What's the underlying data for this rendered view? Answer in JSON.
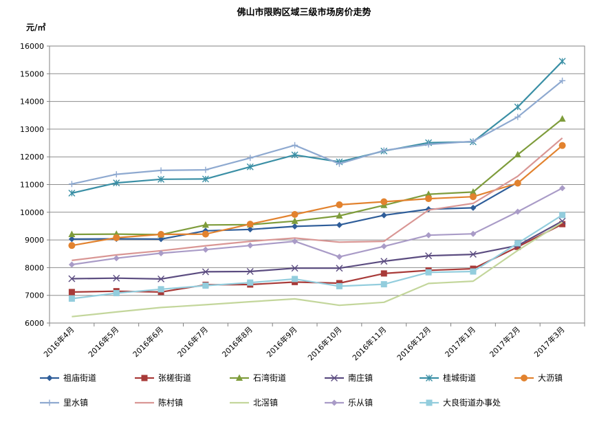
{
  "chart_data": {
    "type": "line",
    "title": "佛山市限购区域三级市场房价走势",
    "ylabel": "元/㎡",
    "ylim": [
      6000,
      16000
    ],
    "yticks": [
      6000,
      7000,
      8000,
      9000,
      10000,
      11000,
      12000,
      13000,
      14000,
      15000,
      16000
    ],
    "grid": true,
    "legend_position": "bottom",
    "categories": [
      "2016年4月",
      "2016年5月",
      "2016年6月",
      "2016年7月",
      "2016年8月",
      "2016年9月",
      "2016年10月",
      "2016年11月",
      "2016年12月",
      "2017年1月",
      "2017年2月",
      "2017年3月"
    ],
    "series": [
      {
        "name": "祖庙街道",
        "color": "#2E5D99",
        "marker": "diamond",
        "values": [
          9030,
          9040,
          9030,
          9330,
          9380,
          9490,
          9540,
          9890,
          10110,
          10160,
          11080,
          null
        ]
      },
      {
        "name": "张槎街道",
        "color": "#A83A38",
        "marker": "square",
        "values": [
          7120,
          7150,
          7120,
          7380,
          7390,
          7480,
          7440,
          7790,
          7900,
          7960,
          8750,
          9570
        ]
      },
      {
        "name": "石湾街道",
        "color": "#7E9C3B",
        "marker": "triangle",
        "values": [
          9200,
          9210,
          9190,
          9540,
          9550,
          9680,
          9870,
          10250,
          10650,
          10730,
          12080,
          13370
        ]
      },
      {
        "name": "南庄镇",
        "color": "#5B4C80",
        "marker": "x",
        "values": [
          7600,
          7620,
          7590,
          7850,
          7860,
          7980,
          7980,
          8230,
          8430,
          8480,
          8800,
          9680
        ]
      },
      {
        "name": "桂城街道",
        "color": "#3A8FA5",
        "marker": "star",
        "values": [
          10690,
          11060,
          11190,
          11200,
          11640,
          12070,
          11820,
          12210,
          12510,
          12540,
          13800,
          15450
        ]
      },
      {
        "name": "大沥镇",
        "color": "#E2822E",
        "marker": "circle",
        "values": [
          8800,
          9080,
          9200,
          9210,
          9570,
          9920,
          10270,
          10380,
          10490,
          10560,
          11050,
          12410
        ]
      },
      {
        "name": "里水镇",
        "color": "#8EA9D0",
        "marker": "plus",
        "values": [
          11020,
          11370,
          11510,
          11530,
          11960,
          12420,
          11750,
          12230,
          12450,
          12560,
          13440,
          14750
        ]
      },
      {
        "name": "陈村镇",
        "color": "#D99694",
        "marker": "none",
        "values": [
          8260,
          8460,
          8610,
          8790,
          8950,
          9070,
          8920,
          8950,
          10080,
          10320,
          11300,
          12680
        ]
      },
      {
        "name": "北滘镇",
        "color": "#C3D69B",
        "marker": "none",
        "values": [
          6230,
          6400,
          6560,
          6660,
          6770,
          6870,
          6640,
          6750,
          7430,
          7510,
          8620,
          9640
        ]
      },
      {
        "name": "乐从镇",
        "color": "#A99BC7",
        "marker": "diamond",
        "values": [
          8110,
          8340,
          8520,
          8650,
          8800,
          8950,
          8390,
          8770,
          9170,
          9220,
          10020,
          10870
        ]
      },
      {
        "name": "大良街道办事处",
        "color": "#93CDDD",
        "marker": "square",
        "values": [
          6880,
          7080,
          7220,
          7350,
          7460,
          7590,
          7330,
          7400,
          7830,
          7860,
          8880,
          9900
        ]
      }
    ]
  }
}
